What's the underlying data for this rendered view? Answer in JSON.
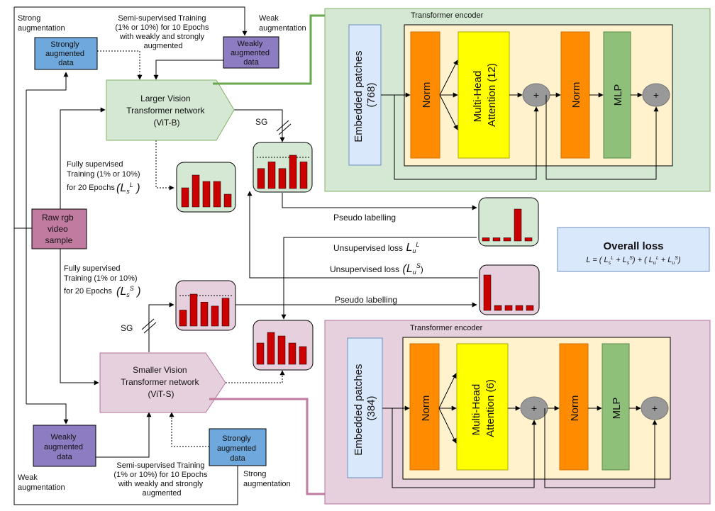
{
  "top_left": {
    "strong_aug_label": [
      "Strong",
      "augmentation"
    ],
    "strong_box": [
      "Strongly",
      "augmented",
      "data"
    ],
    "semi_label": [
      "Semi-supervised Training",
      "(1% or 10%) for 10 Epochs",
      "with weakly and strongly",
      "augmented"
    ],
    "weak_aug_label": [
      "Weak",
      "augmentation"
    ],
    "weak_box": [
      "Weakly",
      "augmented",
      "data"
    ]
  },
  "vit_b": [
    "Larger Vision",
    "Transformer network",
    "(ViT-B)"
  ],
  "vit_s": [
    "Smaller Vision",
    "Transformer network",
    "(ViT-S)"
  ],
  "sg": "SG",
  "fully_top": [
    "Fully supervised",
    "Training (1% or 10%)",
    "for 20 Epochs"
  ],
  "fully_bottom": [
    "Fully supervised",
    "Training (1% or 10%)",
    "for 20 Epochs"
  ],
  "raw": [
    "Raw rgb",
    "video",
    "sample"
  ],
  "pseudo_label": "Pseudo labelling",
  "unsup_L": "Unsupervised loss",
  "unsup_S": "Unsupervised loss",
  "overall": {
    "title": "Overall loss"
  },
  "enc_top": {
    "title": "Transformer encoder",
    "embed": [
      "Embedded patches",
      "(768)"
    ],
    "norm1": "Norm",
    "mha": [
      "Multi-Head",
      "Attention (12)"
    ],
    "plus": "+",
    "norm2": "Norm",
    "mlp": "MLP"
  },
  "enc_bottom": {
    "title": "Transformer encoder",
    "embed": [
      "Embedded patches",
      "(384)"
    ],
    "norm1": "Norm",
    "mha": [
      "Multi-Head",
      "Attention (6)"
    ],
    "plus": "+",
    "norm2": "Norm",
    "mlp": "MLP"
  },
  "bottom_left": {
    "weak_box": [
      "Weakly",
      "augmented",
      "data"
    ],
    "weak_aug_label": [
      "Weak",
      "augmentation"
    ],
    "semi_label": [
      "Semi-supervised Training",
      "(1% or 10%) for 10 Epochs",
      "with weakly and strongly",
      "augmented"
    ],
    "strong_box": [
      "Strongly",
      "augmented",
      "data"
    ],
    "strong_aug_label": [
      "Strong",
      "augmentation"
    ]
  },
  "colors": {
    "green_fill": "#d5e8d4",
    "green_stroke": "#82b366",
    "pink_fill": "#e6d0de",
    "pink_stroke": "#b5739d",
    "blue_box": "#6fa8dc",
    "purple_box": "#8e7cc3",
    "raw_box": "#c27ba0",
    "embed_fill": "#dae8fc",
    "enc_inner": "#fff2cc",
    "norm": "#ff8c00",
    "mha": "#ffff00",
    "mlp": "#8fc07a",
    "plus": "#999999",
    "bar": "#cc0000",
    "overall_fill": "#dae8fc",
    "green_link": "#6aa84f",
    "pink_link": "#c27ba0"
  },
  "histograms": {
    "vitb_out": [
      3,
      5,
      4,
      4,
      2
    ],
    "vitb_sg": [
      3,
      4,
      3,
      5,
      4
    ],
    "pseudo_top": [
      0.5,
      0.5,
      0.5,
      5,
      0.5
    ],
    "vits_out": [
      3,
      4.5,
      4,
      3,
      2.5
    ],
    "vits_aug": [
      2,
      4,
      3,
      2.5,
      3.5
    ],
    "pseudo_bottom": [
      5,
      0.7,
      0.7,
      0.7,
      0.7
    ]
  }
}
